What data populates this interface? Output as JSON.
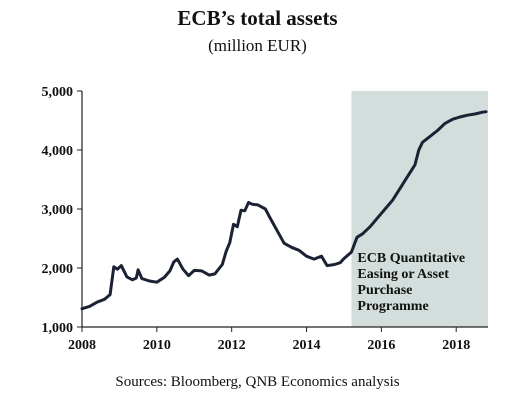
{
  "chart_data": {
    "type": "line",
    "title": "ECB’s total assets",
    "subtitle": "(million EUR)",
    "source": "Sources: Bloomberg, QNB Economics analysis",
    "xlim": [
      2008,
      2018.85
    ],
    "ylim": [
      1000,
      5000
    ],
    "x_ticks": [
      2008,
      2010,
      2012,
      2014,
      2016,
      2018
    ],
    "x_tick_labels": [
      "2008",
      "2010",
      "2012",
      "2014",
      "2016",
      "2018"
    ],
    "y_ticks": [
      1000,
      2000,
      3000,
      4000,
      5000
    ],
    "y_tick_labels": [
      "1,000",
      "2,000",
      "3,000",
      "4,000",
      "5,000"
    ],
    "shaded_region": {
      "x_start": 2015.2,
      "x_end": 2018.85,
      "color": "#d3dddb",
      "label_lines": [
        "ECB Quantitative",
        "Easing or Asset",
        "Purchase",
        "Programme"
      ]
    },
    "line_color": "#1b2233",
    "series": [
      {
        "x": [
          2008.0,
          2008.2,
          2008.4,
          2008.6,
          2008.75,
          2008.85,
          2008.95,
          2009.05,
          2009.2,
          2009.35,
          2009.45,
          2009.5,
          2009.6,
          2009.8,
          2010.0,
          2010.2,
          2010.35,
          2010.45,
          2010.55,
          2010.7,
          2010.85,
          2011.0,
          2011.2,
          2011.4,
          2011.55,
          2011.75,
          2011.85,
          2011.95,
          2012.05,
          2012.15,
          2012.25,
          2012.35,
          2012.45,
          2012.55,
          2012.7,
          2012.9,
          2013.0,
          2013.2,
          2013.4,
          2013.6,
          2013.8,
          2014.0,
          2014.2,
          2014.4,
          2014.55,
          2014.75,
          2014.9,
          2015.0,
          2015.2,
          2015.35,
          2015.5,
          2015.7,
          2015.9,
          2016.1,
          2016.3,
          2016.5,
          2016.7,
          2016.9,
          2017.0,
          2017.1,
          2017.3,
          2017.5,
          2017.7,
          2017.9,
          2018.1,
          2018.3,
          2018.5,
          2018.7,
          2018.8
        ],
        "y": [
          1310,
          1350,
          1420,
          1470,
          1550,
          2020,
          1980,
          2040,
          1850,
          1800,
          1830,
          1970,
          1820,
          1780,
          1760,
          1840,
          1950,
          2100,
          2150,
          1980,
          1870,
          1960,
          1950,
          1880,
          1900,
          2060,
          2280,
          2430,
          2740,
          2700,
          2980,
          2970,
          3110,
          3080,
          3070,
          3000,
          2880,
          2650,
          2420,
          2350,
          2300,
          2200,
          2150,
          2200,
          2040,
          2060,
          2090,
          2160,
          2270,
          2520,
          2580,
          2700,
          2850,
          3000,
          3150,
          3350,
          3550,
          3750,
          4000,
          4130,
          4230,
          4330,
          4450,
          4520,
          4560,
          4590,
          4610,
          4640,
          4650
        ]
      }
    ]
  }
}
